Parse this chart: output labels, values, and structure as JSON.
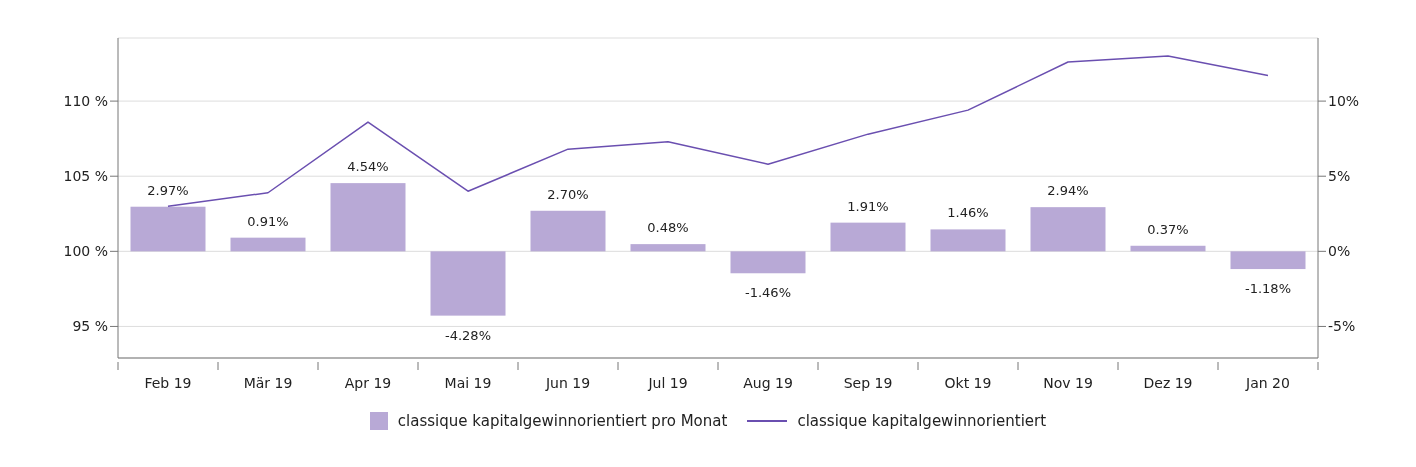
{
  "chart_data": {
    "type": "bar",
    "categories": [
      "Feb 19",
      "Mär 19",
      "Apr 19",
      "Mai 19",
      "Jun 19",
      "Jul 19",
      "Aug 19",
      "Sep 19",
      "Okt 19",
      "Nov 19",
      "Dez 19",
      "Jan 20"
    ],
    "series": [
      {
        "name": "classique kapitalgewinnorientiert pro Monat",
        "axis": "y2",
        "color": "#b8a9d6",
        "values": [
          2.97,
          0.91,
          4.54,
          -4.28,
          2.7,
          0.48,
          -1.46,
          1.91,
          1.46,
          2.94,
          0.37,
          -1.18
        ],
        "value_labels": [
          "2.97%",
          "0.91%",
          "4.54%",
          "-4.28%",
          "2.70%",
          "0.48%",
          "-1.46%",
          "1.91%",
          "1.46%",
          "2.94%",
          "0.37%",
          "-1.18%"
        ]
      },
      {
        "name": "classique kapitalgewinnorientiert",
        "type": "line",
        "color": "#6a4fb0",
        "values": [
          103.0,
          103.9,
          108.6,
          104.0,
          106.8,
          107.3,
          105.8,
          107.8,
          109.4,
          112.6,
          113.0,
          111.7
        ]
      }
    ],
    "ylim": [
      92.9,
      114.2
    ],
    "yticks": [
      {
        "value": 95,
        "label": "95 %"
      },
      {
        "value": 100,
        "label": "100 %"
      },
      {
        "value": 105,
        "label": "105 %"
      },
      {
        "value": 110,
        "label": "110 %"
      }
    ],
    "y2lim": [
      -7.1,
      14.2
    ],
    "y2ticks": [
      {
        "value": -5,
        "label": "-5%"
      },
      {
        "value": 0,
        "label": "0%"
      },
      {
        "value": 5,
        "label": "5%"
      },
      {
        "value": 10,
        "label": "10%"
      }
    ],
    "grid": "y",
    "legend": "bottom",
    "marker": "none",
    "line_style": "solid"
  }
}
